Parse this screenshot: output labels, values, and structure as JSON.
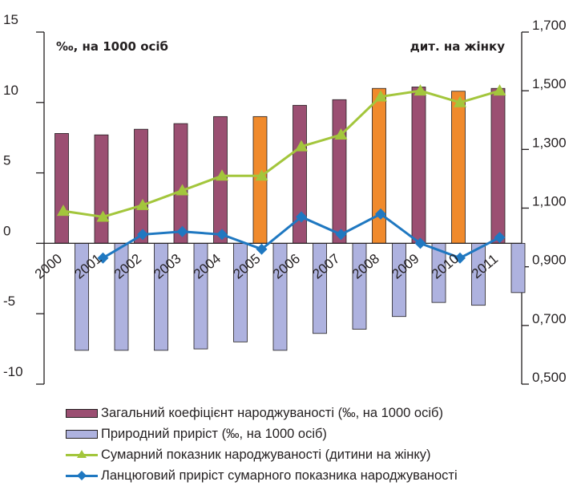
{
  "chart_data": {
    "type": "bar",
    "categories": [
      "2000",
      "2001",
      "2002",
      "2003",
      "2004",
      "2005",
      "2006",
      "2007",
      "2008",
      "2009",
      "2010",
      "2011"
    ],
    "left_axis": {
      "unit_label": "‰, на 1000 осіб",
      "ylim": [
        -10,
        15
      ],
      "ticks": [
        "15",
        "10",
        "5",
        "0",
        "-5",
        "-10"
      ]
    },
    "right_axis": {
      "unit_label": "дит. на жінку",
      "ylim": [
        0.5,
        1.7
      ],
      "ticks": [
        "1,700",
        "1,500",
        "1,300",
        "1,100",
        "0,900",
        "0,700",
        "0,500"
      ]
    },
    "highlighted_categories": [
      "2005",
      "2008",
      "2010"
    ],
    "series": [
      {
        "name": "Загальний коефіцієнт народжуваності (‰, на 1000 осіб)",
        "kind": "bar",
        "axis": "left",
        "color": "#9b4f72",
        "highlight_color": "#f08a2c",
        "values": [
          7.8,
          7.7,
          8.1,
          8.5,
          9.0,
          9.0,
          9.8,
          10.2,
          11.0,
          11.1,
          10.8,
          11.0
        ]
      },
      {
        "name": "Природний приріст (‰, на 1000 осіб)",
        "kind": "bar",
        "axis": "left",
        "color": "#aeb2df",
        "values": [
          -7.6,
          -7.6,
          -7.6,
          -7.5,
          -7.0,
          -7.6,
          -6.4,
          -6.1,
          -5.2,
          -4.2,
          -4.4,
          -3.5
        ]
      },
      {
        "name": "Сумарний показник народжуваності (дитини на жінку)",
        "kind": "line",
        "axis": "right",
        "color": "#a3c63c",
        "marker": "triangle",
        "values": [
          1.09,
          1.07,
          1.11,
          1.16,
          1.21,
          1.21,
          1.31,
          1.35,
          1.48,
          1.5,
          1.46,
          1.5
        ]
      },
      {
        "name": "Ланцюговий приріст сумарного показника народжуваності",
        "kind": "line",
        "axis": "right",
        "color": "#1f78c1",
        "marker": "diamond",
        "values": [
          null,
          0.93,
          1.01,
          1.02,
          1.01,
          0.96,
          1.07,
          1.01,
          1.08,
          0.98,
          0.93,
          1.0
        ]
      }
    ]
  }
}
